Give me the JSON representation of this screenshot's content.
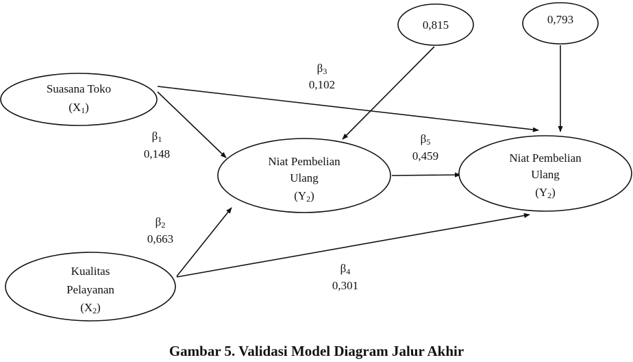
{
  "nodes": {
    "x1": {
      "line1": "Suasana Toko",
      "var": "X",
      "sub": "1"
    },
    "x2": {
      "line1": "Kualitas",
      "line2": "Pelayanan",
      "var": "X",
      "sub": "2"
    },
    "y1": {
      "line1": "Niat Pembelian",
      "line2": "Ulang",
      "var": "Y",
      "sub": "2"
    },
    "y2": {
      "line1": "Niat Pembelian",
      "line2": "Ulang",
      "var": "Y",
      "sub": "2"
    },
    "e1": {
      "value": "0,815"
    },
    "e2": {
      "value": "0,793"
    }
  },
  "paths": {
    "b1": {
      "symbol": "β",
      "sub": "1",
      "value": "0,148"
    },
    "b2": {
      "symbol": "β",
      "sub": "2",
      "value": "0,663"
    },
    "b3": {
      "symbol": "β",
      "sub": "3",
      "value": "0,102"
    },
    "b4": {
      "symbol": "β",
      "sub": "4",
      "value": "0,301"
    },
    "b5": {
      "symbol": "β",
      "sub": "5",
      "value": "0,459"
    }
  },
  "caption": "Gambar 5. Validasi Model Diagram Jalur Akhir"
}
